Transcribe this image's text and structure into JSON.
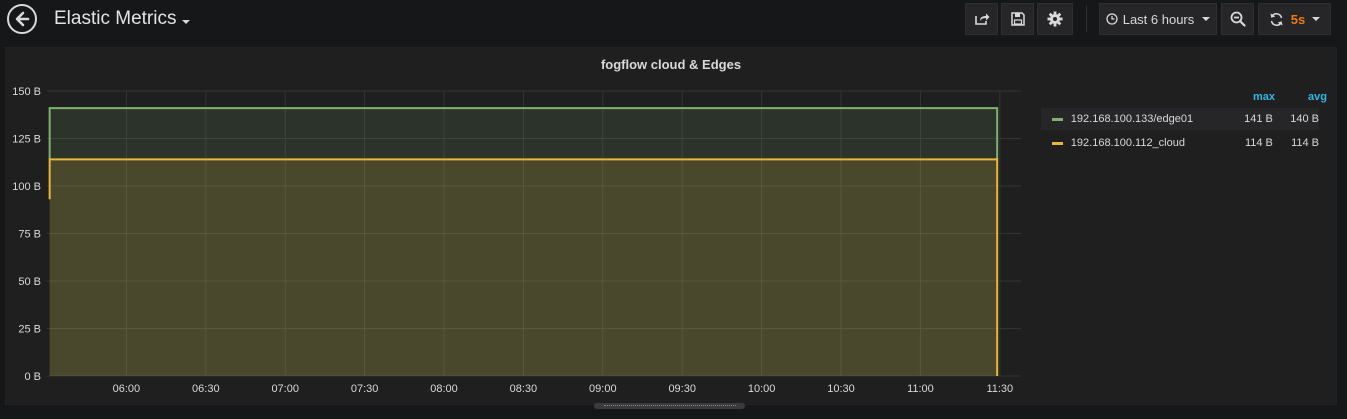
{
  "dashboard": {
    "title": "Elastic Metrics"
  },
  "toolbar": {
    "time_range": "Last 6 hours",
    "refresh_interval": "5s"
  },
  "colors": {
    "background": "#161719",
    "panel": "#1f1f20",
    "accent": "#eb7b18",
    "legend_header": "#33b5e5"
  },
  "icons": {
    "back": "arrow-left-circle-icon",
    "share": "share-icon",
    "save": "floppy-disk-icon",
    "settings": "gear-icon",
    "clock": "clock-icon",
    "zoom_out": "zoom-out-icon",
    "refresh": "refresh-icon"
  },
  "panel": {
    "title": "fogflow cloud & Edges",
    "legend": {
      "max_header": "max",
      "avg_header": "avg",
      "rows": [
        {
          "label": "192.168.100.133/edge01",
          "max": "141 B",
          "avg": "140 B",
          "color": "#7eb26d"
        },
        {
          "label": "192.168.100.112_cloud",
          "max": "114 B",
          "avg": "114 B",
          "color": "#eab839"
        }
      ]
    }
  },
  "chart_data": {
    "type": "area",
    "title": "fogflow cloud & Edges",
    "x_ticks": [
      "06:00",
      "06:30",
      "07:00",
      "07:30",
      "08:00",
      "08:30",
      "09:00",
      "09:30",
      "10:00",
      "10:30",
      "11:00",
      "11:30"
    ],
    "y_ticks": [
      "0 B",
      "25 B",
      "50 B",
      "75 B",
      "100 B",
      "125 B",
      "150 B"
    ],
    "ylim": [
      0,
      150
    ],
    "xlim": [
      "05:30",
      "11:38"
    ],
    "grid": true,
    "legend_position": "right",
    "series": [
      {
        "name": "192.168.100.133/edge01",
        "color": "#7eb26d",
        "points": [
          [
            "05:31",
            114
          ],
          [
            "05:31",
            141
          ],
          [
            "11:29",
            141
          ],
          [
            "11:29",
            114
          ]
        ]
      },
      {
        "name": "192.168.100.112_cloud",
        "color": "#eab839",
        "points": [
          [
            "05:31",
            93
          ],
          [
            "05:31",
            114
          ],
          [
            "11:29",
            114
          ],
          [
            "11:29",
            0
          ]
        ]
      }
    ]
  }
}
